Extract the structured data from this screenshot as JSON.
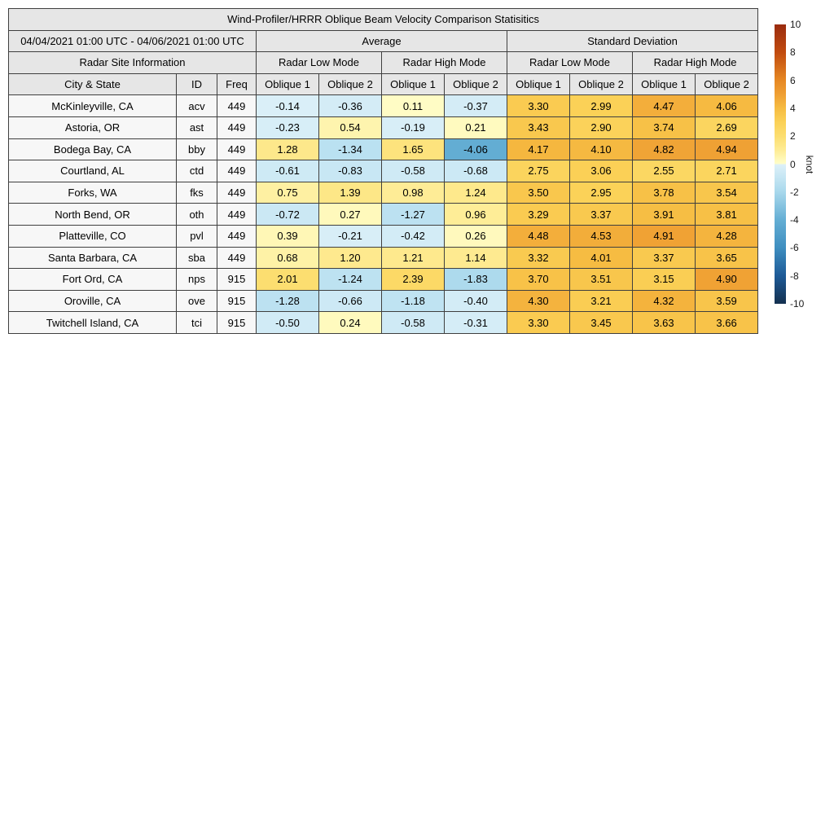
{
  "chart_data": {
    "type": "table",
    "title": "Wind-Profiler/HRRR Oblique Beam Velocity Comparison Statisitics",
    "date_range": "04/04/2021 01:00 UTC - 04/06/2021 01:00 UTC",
    "site_info_header": "Radar Site Information",
    "group_headers": [
      "Average",
      "Standard Deviation"
    ],
    "mode_headers": [
      "Radar Low Mode",
      "Radar High Mode",
      "Radar Low Mode",
      "Radar High Mode"
    ],
    "columns": [
      "City & State",
      "ID",
      "Freq",
      "Oblique 1",
      "Oblique 2",
      "Oblique 1",
      "Oblique 2",
      "Oblique 1",
      "Oblique 2",
      "Oblique 1",
      "Oblique 2"
    ],
    "rows": [
      {
        "city": "McKinleyville, CA",
        "id": "acv",
        "freq": "449",
        "values": [
          -0.14,
          -0.36,
          0.11,
          -0.37,
          3.3,
          2.99,
          4.47,
          4.06
        ]
      },
      {
        "city": "Astoria, OR",
        "id": "ast",
        "freq": "449",
        "values": [
          -0.23,
          0.54,
          -0.19,
          0.21,
          3.43,
          2.9,
          3.74,
          2.69
        ]
      },
      {
        "city": "Bodega Bay, CA",
        "id": "bby",
        "freq": "449",
        "values": [
          1.28,
          -1.34,
          1.65,
          -4.06,
          4.17,
          4.1,
          4.82,
          4.94
        ]
      },
      {
        "city": "Courtland, AL",
        "id": "ctd",
        "freq": "449",
        "values": [
          -0.61,
          -0.83,
          -0.58,
          -0.68,
          2.75,
          3.06,
          2.55,
          2.71
        ]
      },
      {
        "city": "Forks, WA",
        "id": "fks",
        "freq": "449",
        "values": [
          0.75,
          1.39,
          0.98,
          1.24,
          3.5,
          2.95,
          3.78,
          3.54
        ]
      },
      {
        "city": "North Bend, OR",
        "id": "oth",
        "freq": "449",
        "values": [
          -0.72,
          0.27,
          -1.27,
          0.96,
          3.29,
          3.37,
          3.91,
          3.81
        ]
      },
      {
        "city": "Platteville, CO",
        "id": "pvl",
        "freq": "449",
        "values": [
          0.39,
          -0.21,
          -0.42,
          0.26,
          4.48,
          4.53,
          4.91,
          4.28
        ]
      },
      {
        "city": "Santa Barbara, CA",
        "id": "sba",
        "freq": "449",
        "values": [
          0.68,
          1.2,
          1.21,
          1.14,
          3.32,
          4.01,
          3.37,
          3.65
        ]
      },
      {
        "city": "Fort Ord, CA",
        "id": "nps",
        "freq": "915",
        "values": [
          2.01,
          -1.24,
          2.39,
          -1.83,
          3.7,
          3.51,
          3.15,
          4.9
        ]
      },
      {
        "city": "Oroville, CA",
        "id": "ove",
        "freq": "915",
        "values": [
          -1.28,
          -0.66,
          -1.18,
          -0.4,
          4.3,
          3.21,
          4.32,
          3.59
        ]
      },
      {
        "city": "Twitchell Island, CA",
        "id": "tci",
        "freq": "915",
        "values": [
          -0.5,
          0.24,
          -0.58,
          -0.31,
          3.3,
          3.45,
          3.63,
          3.66
        ]
      }
    ],
    "colorbar": {
      "label": "knot",
      "min": -10,
      "max": 10,
      "ticks": [
        10,
        8,
        6,
        4,
        2,
        0,
        -2,
        -4,
        -6,
        -8,
        -10
      ],
      "colormap_anchors": [
        {
          "v": -10,
          "c": "#14304F"
        },
        {
          "v": -8,
          "c": "#1D5A97"
        },
        {
          "v": -6,
          "c": "#3E8EC0"
        },
        {
          "v": -4,
          "c": "#64AED4"
        },
        {
          "v": -2,
          "c": "#A8D8EC"
        },
        {
          "v": -1,
          "c": "#C4E5F3"
        },
        {
          "v": -0.05,
          "c": "#DCF0F8"
        },
        {
          "v": 0.05,
          "c": "#FFFDC8"
        },
        {
          "v": 1,
          "c": "#FEEC95"
        },
        {
          "v": 2,
          "c": "#FCDE70"
        },
        {
          "v": 3,
          "c": "#FBD157"
        },
        {
          "v": 4,
          "c": "#F6BC42"
        },
        {
          "v": 5,
          "c": "#EF9F33"
        },
        {
          "v": 6,
          "c": "#E68823"
        },
        {
          "v": 8,
          "c": "#C14B0F"
        },
        {
          "v": 10,
          "c": "#9A2C0F"
        }
      ]
    },
    "style_colors": {
      "header_bg": "#e6e6e6",
      "site_cell_bg": "#f7f7f7",
      "border": "#3f3f3f",
      "text": "#000000"
    }
  }
}
